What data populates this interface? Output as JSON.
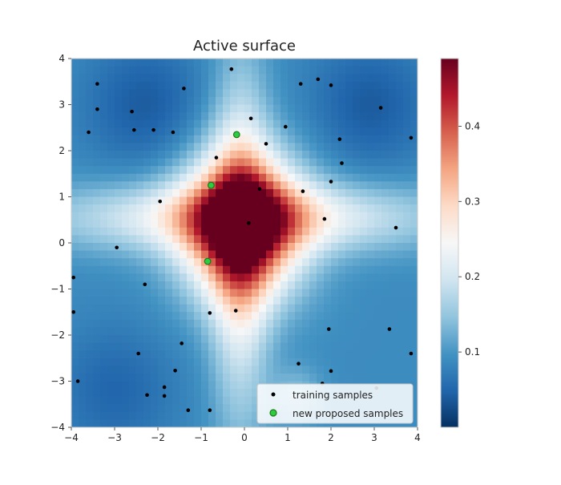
{
  "chart_data": {
    "type": "heatmap",
    "title": "Active surface",
    "xlim": [
      -4,
      4
    ],
    "ylim": [
      -4,
      4
    ],
    "x_ticks": [
      "−4",
      "−3",
      "−2",
      "−1",
      "0",
      "1",
      "2",
      "3",
      "4"
    ],
    "y_ticks": [
      "−4",
      "−3",
      "−2",
      "−1",
      "0",
      "1",
      "2",
      "3",
      "4"
    ],
    "colorbar": {
      "range": [
        0.0,
        0.49
      ],
      "ticks": [
        "0.1",
        "0.2",
        "0.3",
        "0.4"
      ],
      "colormap": "RdBu_r"
    },
    "legend": {
      "location": "lower-right",
      "entries": [
        "training samples",
        "new proposed samples"
      ]
    },
    "series": [
      {
        "name": "training samples",
        "color": "#000000",
        "points": [
          [
            -3.4,
            3.45
          ],
          [
            -3.4,
            2.9
          ],
          [
            -2.6,
            2.85
          ],
          [
            -1.4,
            3.35
          ],
          [
            -0.3,
            3.77
          ],
          [
            -3.6,
            2.4
          ],
          [
            -2.55,
            2.45
          ],
          [
            -2.1,
            2.45
          ],
          [
            -1.65,
            2.4
          ],
          [
            0.15,
            2.7
          ],
          [
            0.95,
            2.52
          ],
          [
            1.3,
            3.45
          ],
          [
            1.7,
            3.55
          ],
          [
            2.0,
            3.42
          ],
          [
            3.15,
            2.93
          ],
          [
            3.85,
            2.28
          ],
          [
            2.2,
            2.25
          ],
          [
            0.5,
            2.15
          ],
          [
            -0.65,
            1.85
          ],
          [
            2.25,
            1.73
          ],
          [
            2.0,
            1.33
          ],
          [
            0.35,
            1.17
          ],
          [
            1.35,
            1.12
          ],
          [
            -1.95,
            0.9
          ],
          [
            1.85,
            0.52
          ],
          [
            0.1,
            0.43
          ],
          [
            3.5,
            0.33
          ],
          [
            -2.95,
            -0.1
          ],
          [
            -3.95,
            -0.75
          ],
          [
            -2.3,
            -0.9
          ],
          [
            -3.95,
            -1.5
          ],
          [
            -0.8,
            -1.52
          ],
          [
            -0.2,
            -1.47
          ],
          [
            1.95,
            -1.87
          ],
          [
            3.35,
            -1.87
          ],
          [
            -1.45,
            -2.18
          ],
          [
            -2.45,
            -2.4
          ],
          [
            3.85,
            -2.4
          ],
          [
            1.25,
            -2.62
          ],
          [
            -1.6,
            -2.77
          ],
          [
            2.0,
            -2.78
          ],
          [
            -3.85,
            -3.0
          ],
          [
            1.8,
            -3.05
          ],
          [
            -1.85,
            -3.13
          ],
          [
            -2.25,
            -3.3
          ],
          [
            -1.85,
            -3.32
          ],
          [
            -1.3,
            -3.63
          ],
          [
            -0.8,
            -3.63
          ],
          [
            3.05,
            -3.15
          ]
        ]
      },
      {
        "name": "new proposed samples",
        "color": "#2ecc40",
        "points": [
          [
            -0.18,
            2.35
          ],
          [
            -0.77,
            1.25
          ],
          [
            -0.85,
            -0.4
          ]
        ]
      }
    ]
  }
}
